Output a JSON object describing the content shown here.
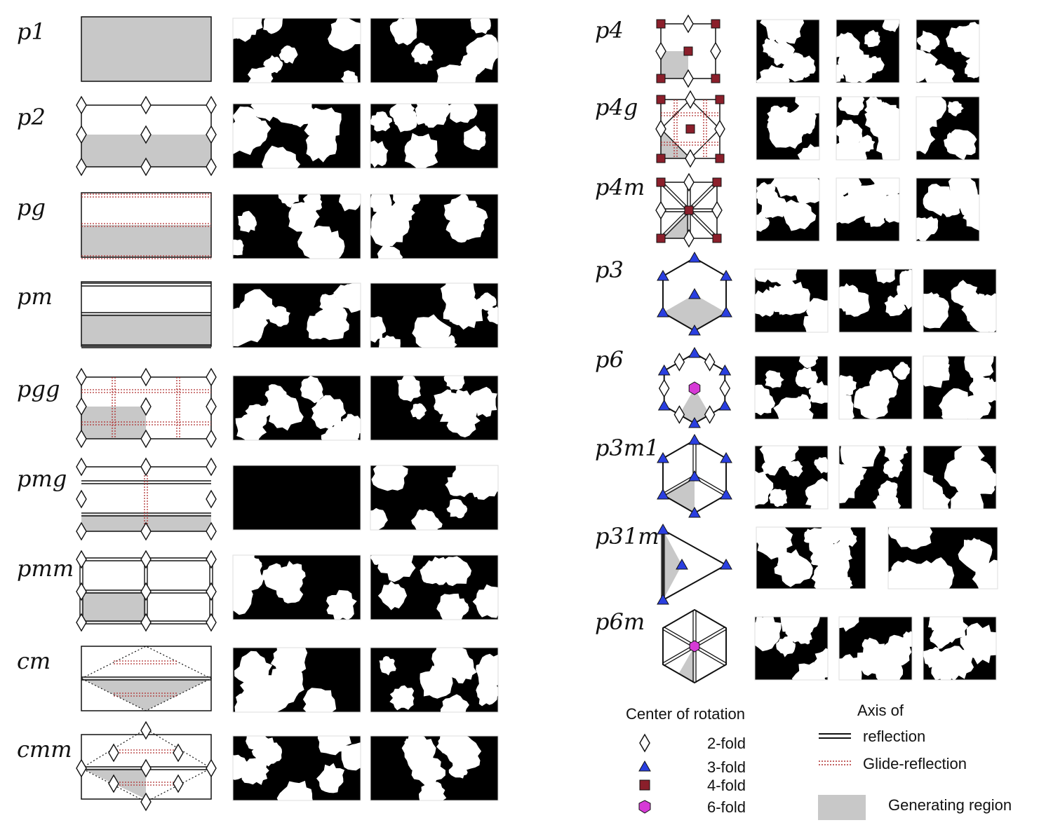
{
  "left_groups": [
    {
      "label": "p1"
    },
    {
      "label": "p2"
    },
    {
      "label": "pg"
    },
    {
      "label": "pm"
    },
    {
      "label": "pgg"
    },
    {
      "label": "pmg"
    },
    {
      "label": "pmm"
    },
    {
      "label": "cm"
    },
    {
      "label": "cmm"
    }
  ],
  "right_groups": [
    {
      "label": "p4"
    },
    {
      "label": "p4g"
    },
    {
      "label": "p4m"
    },
    {
      "label": "p3"
    },
    {
      "label": "p6"
    },
    {
      "label": "p3m1"
    },
    {
      "label": "p31m"
    },
    {
      "label": "p6m"
    }
  ],
  "legend": {
    "rotation_title": "Center of rotation",
    "two_fold": "2-fold",
    "three_fold": "3-fold",
    "four_fold": "4-fold",
    "six_fold": "6-fold",
    "axis_title": "Axis of",
    "reflection": "reflection",
    "glide": "Glide-reflection",
    "generating": "Generating region"
  },
  "colors": {
    "generating_region": "#c8c8c8",
    "glide_line": "#b03030",
    "four_fold_square": "#8b1f2b",
    "three_fold_triangle": "#2a3fe0",
    "six_fold_hexagon": "#d63ad6",
    "pattern_black": "#000000"
  }
}
